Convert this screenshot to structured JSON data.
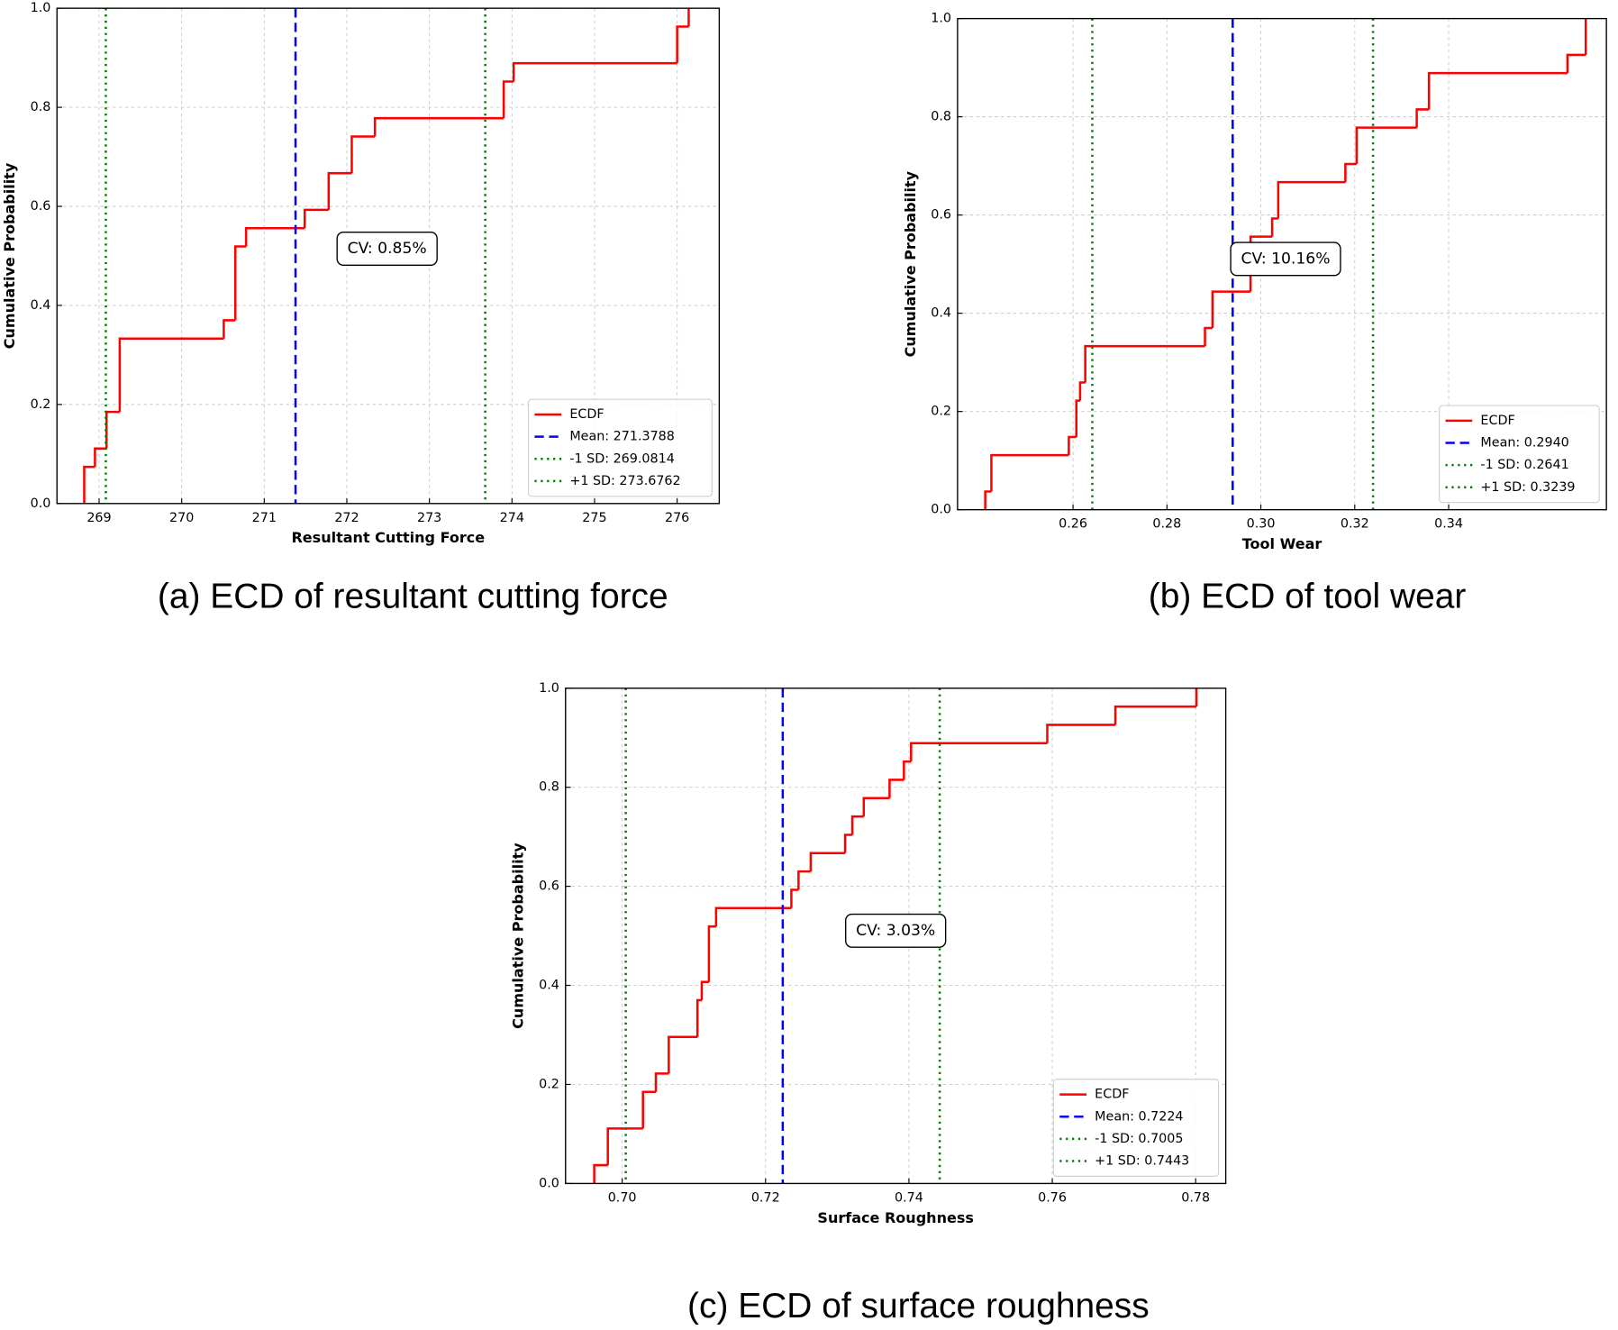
{
  "chart_data": [
    {
      "type": "ecdf",
      "caption": "(a) ECD of resultant cutting force",
      "xlabel": "Resultant Cutting Force",
      "ylabel": "Cumulative Probability",
      "xlim": [
        268.49,
        276.51
      ],
      "ylim": [
        0,
        1
      ],
      "xticks": [
        269,
        270,
        271,
        272,
        273,
        274,
        275,
        276
      ],
      "yticks": [
        {
          "value": 0,
          "label": "0.0"
        },
        0.2,
        0.4,
        0.6,
        0.8,
        {
          "value": 1,
          "label": "1.0"
        }
      ],
      "grid": true,
      "legend": "lower right",
      "series": [
        {
          "name": "ECDF",
          "color": "#ff0000",
          "x": [
            268.82,
            268.95,
            269.09,
            269.25,
            270.51,
            270.65,
            270.78,
            271.49,
            271.78,
            272.06,
            272.34,
            273.9,
            274.02,
            276.0,
            276.14
          ],
          "values": [
            0.074,
            0.111,
            0.185,
            0.333,
            0.37,
            0.519,
            0.556,
            0.593,
            0.667,
            0.741,
            0.778,
            0.852,
            0.889,
            0.963,
            1.0
          ]
        }
      ],
      "vlines": [
        {
          "name": "Mean: 271.3788",
          "value": 271.3788,
          "color": "#0000ff",
          "style": "dashed"
        },
        {
          "name": "-1 SD: 269.0814",
          "value": 269.0814,
          "color": "#008000",
          "style": "dotted"
        },
        {
          "name": "+1 SD: 273.6762",
          "value": 273.6762,
          "color": "#008000",
          "style": "dotted"
        }
      ],
      "annotation": "CV: 0.85%"
    },
    {
      "type": "ecdf",
      "caption": "(b) ECD of tool wear",
      "xlabel": "Tool Wear",
      "ylabel": "Cumulative Probability",
      "xlim": [
        0.2354,
        0.3736
      ],
      "ylim": [
        0,
        1
      ],
      "xticks": [
        0.26,
        0.28,
        {
          "value": 0.3,
          "label": "0.30"
        },
        0.32,
        0.34
      ],
      "yticks": [
        {
          "value": 0,
          "label": "0.0"
        },
        0.2,
        0.4,
        0.6,
        0.8,
        {
          "value": 1,
          "label": "1.0"
        }
      ],
      "grid": true,
      "legend": "lower right",
      "series": [
        {
          "name": "ECDF",
          "color": "#ff0000",
          "x": [
            0.2413,
            0.2426,
            0.2591,
            0.2607,
            0.2615,
            0.2626,
            0.2881,
            0.2897,
            0.2978,
            0.3024,
            0.3037,
            0.318,
            0.3204,
            0.3332,
            0.3358,
            0.3653,
            0.3692
          ],
          "values": [
            0.037,
            0.111,
            0.148,
            0.222,
            0.259,
            0.333,
            0.37,
            0.444,
            0.556,
            0.593,
            0.667,
            0.704,
            0.778,
            0.815,
            0.889,
            0.926,
            1.0
          ]
        }
      ],
      "vlines": [
        {
          "name": "Mean: 0.2940",
          "value": 0.294,
          "color": "#0000ff",
          "style": "dashed"
        },
        {
          "name": "-1 SD: 0.2641",
          "value": 0.2641,
          "color": "#008000",
          "style": "dotted"
        },
        {
          "name": "+1 SD: 0.3239",
          "value": 0.3239,
          "color": "#008000",
          "style": "dotted"
        }
      ],
      "annotation": "CV: 10.16%"
    },
    {
      "type": "ecdf",
      "caption": "(c) ECD of surface roughness",
      "xlabel": "Surface Roughness",
      "ylabel": "Cumulative Probability",
      "xlim": [
        0.6921,
        0.7842
      ],
      "ylim": [
        0,
        1
      ],
      "xticks": [
        {
          "value": 0.7,
          "label": "0.70"
        },
        0.72,
        0.74,
        0.76,
        0.78
      ],
      "yticks": [
        {
          "value": 0,
          "label": "0.0"
        },
        0.2,
        0.4,
        0.6,
        0.8,
        {
          "value": 1,
          "label": "1.0"
        }
      ],
      "grid": true,
      "legend": "lower right",
      "series": [
        {
          "name": "ECDF",
          "color": "#ff0000",
          "x": [
            0.6961,
            0.698,
            0.7029,
            0.7047,
            0.7065,
            0.7105,
            0.7111,
            0.7121,
            0.7131,
            0.7236,
            0.7246,
            0.7263,
            0.7311,
            0.7321,
            0.7337,
            0.7373,
            0.7393,
            0.7403,
            0.7593,
            0.7688,
            0.7801
          ],
          "values": [
            0.037,
            0.111,
            0.185,
            0.222,
            0.296,
            0.37,
            0.407,
            0.519,
            0.556,
            0.593,
            0.63,
            0.667,
            0.704,
            0.741,
            0.778,
            0.815,
            0.852,
            0.889,
            0.926,
            0.963,
            1.0
          ]
        }
      ],
      "vlines": [
        {
          "name": "Mean: 0.7224",
          "value": 0.7224,
          "color": "#0000ff",
          "style": "dashed"
        },
        {
          "name": "-1 SD: 0.7005",
          "value": 0.7005,
          "color": "#008000",
          "style": "dotted"
        },
        {
          "name": "+1 SD: 0.7443",
          "value": 0.7443,
          "color": "#008000",
          "style": "dotted"
        }
      ],
      "annotation": "CV: 3.03%"
    }
  ]
}
